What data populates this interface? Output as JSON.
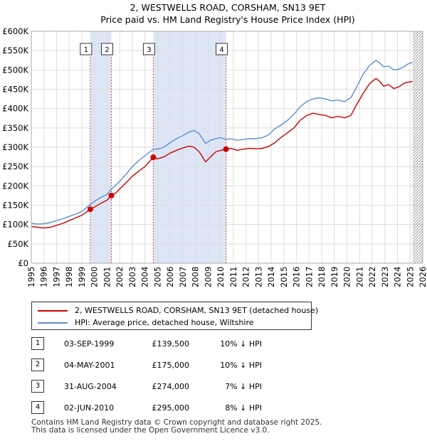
{
  "chart_data": {
    "type": "line",
    "title": "2, WESTWELLS ROAD, CORSHAM, SN13 9ET",
    "subtitle": "Price paid vs. HM Land Registry's House Price Index (HPI)",
    "xlabel": "",
    "ylabel": "",
    "xlim": [
      1995,
      2026
    ],
    "ylim": [
      0,
      600000
    ],
    "x_ticks": [
      "1995",
      "1996",
      "1997",
      "1998",
      "1999",
      "2000",
      "2001",
      "2002",
      "2003",
      "2004",
      "2005",
      "2006",
      "2007",
      "2008",
      "2009",
      "2010",
      "2011",
      "2012",
      "2013",
      "2014",
      "2015",
      "2016",
      "2017",
      "2018",
      "2019",
      "2020",
      "2021",
      "2022",
      "2023",
      "2024",
      "2025",
      "2026"
    ],
    "y_ticks": [
      {
        "value": 0,
        "label": "£0"
      },
      {
        "value": 50000,
        "label": "£50K"
      },
      {
        "value": 100000,
        "label": "£100K"
      },
      {
        "value": 150000,
        "label": "£150K"
      },
      {
        "value": 200000,
        "label": "£200K"
      },
      {
        "value": 250000,
        "label": "£250K"
      },
      {
        "value": 300000,
        "label": "£300K"
      },
      {
        "value": 350000,
        "label": "£350K"
      },
      {
        "value": 400000,
        "label": "£400K"
      },
      {
        "value": 450000,
        "label": "£450K"
      },
      {
        "value": 500000,
        "label": "£500K"
      },
      {
        "value": 550000,
        "label": "£550K"
      },
      {
        "value": 600000,
        "label": "£600K"
      }
    ],
    "grid": true,
    "future_hatch_from": 2025.2,
    "shaded_spans": [
      [
        1999.67,
        2001.34
      ],
      [
        2004.66,
        2010.42
      ]
    ],
    "series": [
      {
        "name": "2, WESTWELLS ROAD, CORSHAM, SN13 9ET (detached house)",
        "color": "#cc0000",
        "x": [
          1995.0,
          1995.5,
          1996.0,
          1996.5,
          1997.0,
          1997.5,
          1998.0,
          1998.5,
          1999.0,
          1999.67,
          2000.0,
          2000.5,
          2001.0,
          2001.34,
          2001.7,
          2002.0,
          2002.5,
          2003.0,
          2003.5,
          2004.0,
          2004.66,
          2005.0,
          2005.5,
          2006.0,
          2006.5,
          2007.0,
          2007.5,
          2007.9,
          2008.3,
          2008.8,
          2009.2,
          2009.6,
          2010.0,
          2010.42,
          2010.8,
          2011.3,
          2011.8,
          2012.3,
          2012.8,
          2013.3,
          2013.8,
          2014.3,
          2014.8,
          2015.3,
          2015.8,
          2016.3,
          2016.8,
          2017.3,
          2017.8,
          2018.3,
          2018.8,
          2019.3,
          2019.8,
          2020.3,
          2020.8,
          2021.3,
          2021.8,
          2022.3,
          2022.6,
          2022.9,
          2023.3,
          2023.7,
          2024.1,
          2024.5,
          2024.8,
          2025.2
        ],
        "y": [
          95000,
          93000,
          91000,
          93000,
          98000,
          103000,
          110000,
          117000,
          124000,
          139500,
          145000,
          155000,
          163000,
          175000,
          182000,
          192000,
          208000,
          225000,
          238000,
          250000,
          274000,
          270000,
          275000,
          285000,
          292000,
          298000,
          303000,
          300000,
          288000,
          262000,
          275000,
          288000,
          292000,
          295000,
          297000,
          292000,
          295000,
          297000,
          296000,
          297000,
          302000,
          312000,
          326000,
          338000,
          350000,
          370000,
          382000,
          388000,
          385000,
          382000,
          376000,
          380000,
          376000,
          382000,
          412000,
          440000,
          465000,
          478000,
          470000,
          458000,
          462000,
          452000,
          456000,
          465000,
          468000,
          470000
        ]
      },
      {
        "name": "HPI: Average price, detached house, Wiltshire",
        "color": "#5b8fd0",
        "x": [
          1995.0,
          1995.5,
          1996.0,
          1996.5,
          1997.0,
          1997.5,
          1998.0,
          1998.5,
          1999.0,
          1999.67,
          2000.0,
          2000.5,
          2001.0,
          2001.34,
          2001.7,
          2002.0,
          2002.5,
          2003.0,
          2003.5,
          2004.0,
          2004.66,
          2005.0,
          2005.5,
          2006.0,
          2006.5,
          2007.0,
          2007.5,
          2007.9,
          2008.3,
          2008.8,
          2009.2,
          2009.6,
          2010.0,
          2010.42,
          2010.8,
          2011.3,
          2011.8,
          2012.3,
          2012.8,
          2013.3,
          2013.8,
          2014.3,
          2014.8,
          2015.3,
          2015.8,
          2016.3,
          2016.8,
          2017.3,
          2017.8,
          2018.3,
          2018.8,
          2019.3,
          2019.8,
          2020.3,
          2020.8,
          2021.3,
          2021.8,
          2022.3,
          2022.6,
          2022.9,
          2023.3,
          2023.7,
          2024.1,
          2024.5,
          2024.8,
          2025.2
        ],
        "y": [
          103000,
          101000,
          102000,
          105000,
          110000,
          115000,
          121000,
          127000,
          134000,
          152000,
          160000,
          170000,
          178000,
          192000,
          202000,
          212000,
          230000,
          250000,
          265000,
          278000,
          295000,
          295000,
          300000,
          312000,
          322000,
          330000,
          340000,
          343000,
          335000,
          310000,
          318000,
          322000,
          325000,
          320000,
          322000,
          318000,
          320000,
          322000,
          322000,
          325000,
          332000,
          348000,
          358000,
          370000,
          385000,
          405000,
          418000,
          425000,
          428000,
          425000,
          420000,
          422000,
          418000,
          428000,
          458000,
          490000,
          512000,
          525000,
          518000,
          508000,
          510000,
          500000,
          502000,
          508000,
          515000,
          520000
        ]
      }
    ],
    "annotations": [
      {
        "label": "1",
        "x": 1999.67,
        "value": 139500
      },
      {
        "label": "2",
        "x": 2001.34,
        "value": 175000
      },
      {
        "label": "3",
        "x": 2004.66,
        "value": 274000
      },
      {
        "label": "4",
        "x": 2010.42,
        "value": 295000
      }
    ]
  },
  "legend": {
    "items": [
      {
        "label": "2, WESTWELLS ROAD, CORSHAM, SN13 9ET (detached house)",
        "color": "#cc0000"
      },
      {
        "label": "HPI: Average price, detached house, Wiltshire",
        "color": "#5b8fd0"
      }
    ]
  },
  "sales": [
    {
      "num": "1",
      "date": "03-SEP-1999",
      "price": "£139,500",
      "hpi": "10% ↓ HPI"
    },
    {
      "num": "2",
      "date": "04-MAY-2001",
      "price": "£175,000",
      "hpi": "10% ↓ HPI"
    },
    {
      "num": "3",
      "date": "31-AUG-2004",
      "price": "£274,000",
      "hpi": "7% ↓ HPI"
    },
    {
      "num": "4",
      "date": "02-JUN-2010",
      "price": "£295,000",
      "hpi": "8% ↓ HPI"
    }
  ],
  "footer": {
    "line1": "Contains HM Land Registry data © Crown copyright and database right 2025.",
    "line2": "This data is licensed under the Open Government Licence v3.0."
  }
}
